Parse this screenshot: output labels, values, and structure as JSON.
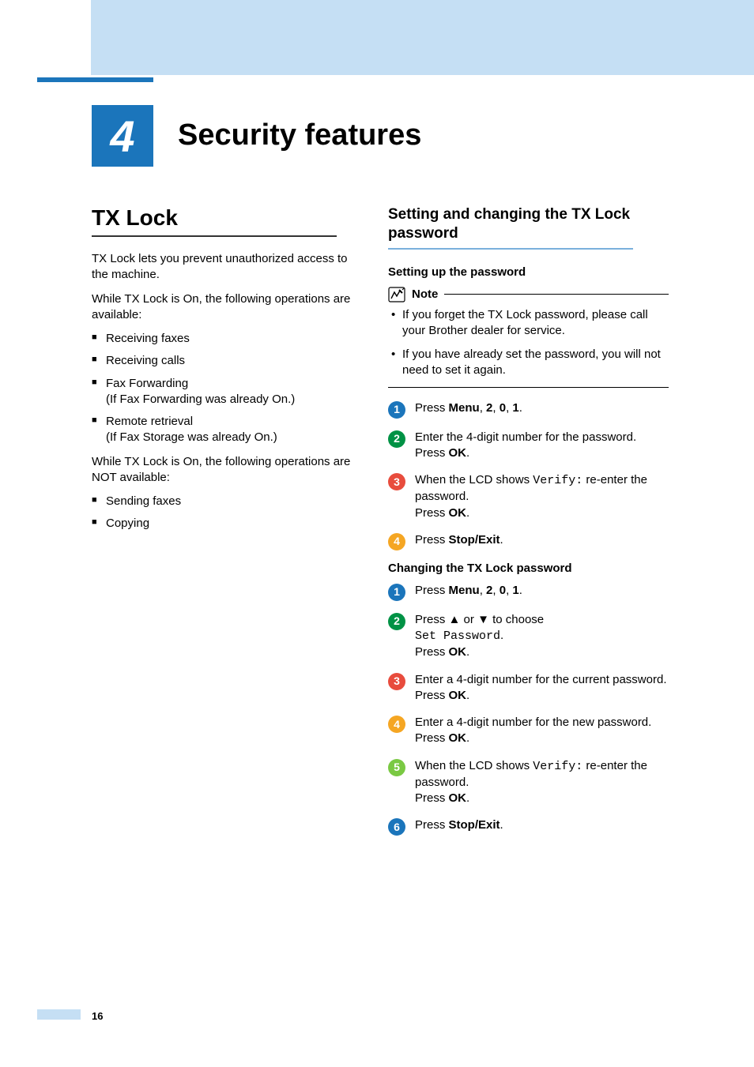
{
  "chapter": {
    "number": "4",
    "title": "Security features"
  },
  "left": {
    "h1": "TX Lock",
    "p1": "TX Lock lets you prevent unauthorized access to the machine.",
    "p2": "While TX Lock is On, the following operations are available:",
    "avail": [
      {
        "text": "Receiving faxes"
      },
      {
        "text": "Receiving calls"
      },
      {
        "text": "Fax Forwarding",
        "sub": "(If Fax Forwarding was already On.)"
      },
      {
        "text": "Remote retrieval",
        "sub": "(If Fax Storage was already On.)"
      }
    ],
    "p3": "While TX Lock is On, the following operations are NOT available:",
    "notavail": [
      {
        "text": "Sending faxes"
      },
      {
        "text": "Copying"
      }
    ]
  },
  "right": {
    "h2": "Setting and changing the TX Lock password",
    "setup_h3": "Setting up the password",
    "note_title": "Note",
    "notes": [
      "If you forget the TX Lock password, please call your Brother dealer for service.",
      "If you have already set the password, you will not need to set it again."
    ],
    "setup_steps": [
      {
        "n": "1",
        "color": "#1b75bb",
        "parts": [
          "Press ",
          {
            "b": "Menu"
          },
          ", ",
          {
            "b": "2"
          },
          ", ",
          {
            "b": "0"
          },
          ", ",
          {
            "b": "1"
          },
          "."
        ]
      },
      {
        "n": "2",
        "color": "#009245",
        "parts": [
          "Enter the 4-digit number for the password.",
          {
            "br": true
          },
          "Press ",
          {
            "b": "OK"
          },
          "."
        ]
      },
      {
        "n": "3",
        "color": "#e84c3d",
        "parts": [
          "When the LCD shows ",
          {
            "m": "Verify:"
          },
          " re-enter the password.",
          {
            "br": true
          },
          "Press ",
          {
            "b": "OK"
          },
          "."
        ]
      },
      {
        "n": "4",
        "color": "#f5a623",
        "parts": [
          "Press ",
          {
            "b": "Stop/Exit"
          },
          "."
        ]
      }
    ],
    "change_h3": "Changing the TX Lock password",
    "change_steps": [
      {
        "n": "1",
        "color": "#1b75bb",
        "parts": [
          "Press ",
          {
            "b": "Menu"
          },
          ", ",
          {
            "b": "2"
          },
          ", ",
          {
            "b": "0"
          },
          ", ",
          {
            "b": "1"
          },
          "."
        ]
      },
      {
        "n": "2",
        "color": "#009245",
        "parts": [
          "Press ",
          {
            "b": "▲"
          },
          " or ",
          {
            "b": "▼"
          },
          " to choose ",
          {
            "br": true
          },
          {
            "m": "Set Password"
          },
          ".",
          {
            "br": true
          },
          "Press ",
          {
            "b": "OK"
          },
          "."
        ]
      },
      {
        "n": "3",
        "color": "#e84c3d",
        "parts": [
          "Enter a 4-digit number for the current password.",
          {
            "br": true
          },
          "Press ",
          {
            "b": "OK"
          },
          "."
        ]
      },
      {
        "n": "4",
        "color": "#f5a623",
        "parts": [
          "Enter a 4-digit number for the new password.",
          {
            "br": true
          },
          "Press ",
          {
            "b": "OK"
          },
          "."
        ]
      },
      {
        "n": "5",
        "color": "#7ac943",
        "parts": [
          "When the LCD shows ",
          {
            "m": "Verify:"
          },
          " re-enter the password.",
          {
            "br": true
          },
          "Press ",
          {
            "b": "OK"
          },
          "."
        ]
      },
      {
        "n": "6",
        "color": "#1b75bb",
        "parts": [
          "Press ",
          {
            "b": "Stop/Exit"
          },
          "."
        ]
      }
    ]
  },
  "page_number": "16"
}
